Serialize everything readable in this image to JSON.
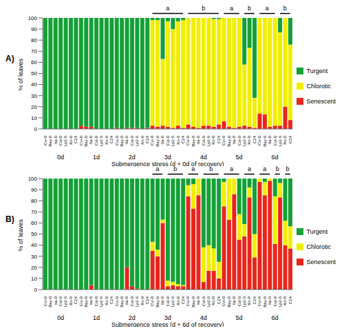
{
  "chart_data": [
    {
      "type": "bar",
      "stacked": true,
      "panel": "A)",
      "legend": "right",
      "categories": [
        "Cvi-0",
        "Bay-0",
        "Ita-0",
        "Col-0",
        "Lp2-6",
        "Kn-0",
        "C24",
        "Cvi-0",
        "Bay-0",
        "Ita-0",
        "Col-0",
        "Lp2-6",
        "Kn-0",
        "C24",
        "Cvi-0",
        "Bay-0",
        "Ita-0",
        "Col-0",
        "Lp2-6",
        "Kn-0",
        "C24",
        "Cvi-0",
        "Bay-0",
        "Ita-0",
        "Col-0",
        "Lp2-6",
        "Kn-0",
        "C24",
        "Cvi-0",
        "Bay-0",
        "Ita-0",
        "Col-0",
        "Lp2-6",
        "Kn-0",
        "C24",
        "Cvi-0",
        "Bay-0",
        "Ita-0",
        "Col-0",
        "Lp2-6",
        "Kn-0",
        "C24",
        "Cvi-0",
        "Bay-0",
        "Ita-0",
        "Col-0",
        "Lp2-6",
        "Kn-0",
        "C24"
      ],
      "groups": [
        "0d",
        "1d",
        "2d",
        "3d",
        "4d",
        "5d",
        "6d"
      ],
      "x_label": "Submergence stress (d + 0d of recovery)",
      "y_label": "% of leaves",
      "ylim": [
        0,
        100
      ],
      "yticks": [
        0,
        10,
        20,
        30,
        40,
        50,
        60,
        70,
        80,
        90,
        100
      ],
      "series": [
        {
          "name": "Turgent",
          "color": "#13a136",
          "values": [
            100,
            100,
            100,
            100,
            100,
            100,
            100,
            97,
            98,
            98,
            100,
            100,
            100,
            100,
            99,
            100,
            99,
            99,
            99,
            100,
            99,
            2,
            2,
            37,
            3,
            10,
            3,
            2,
            0,
            0,
            0,
            0,
            0,
            1,
            1,
            0,
            0,
            0,
            0,
            42,
            27,
            72,
            0,
            0,
            0,
            0,
            13,
            0,
            24
          ]
        },
        {
          "name": "Chlorotic",
          "color": "#f2ee00",
          "values": [
            0,
            0,
            0,
            0,
            0,
            0,
            0,
            0,
            0,
            0,
            0,
            0,
            0,
            0,
            0,
            0,
            0,
            0,
            0,
            0,
            0,
            95,
            96,
            60,
            95,
            89,
            94,
            97,
            96,
            98,
            99,
            97,
            97,
            97,
            95,
            93,
            98,
            99,
            98,
            55,
            71,
            27,
            86,
            87,
            98,
            97,
            84,
            80,
            68
          ]
        },
        {
          "name": "Senescent",
          "color": "#e8261c",
          "values": [
            0,
            0,
            0,
            0,
            0,
            0,
            0,
            3,
            2,
            2,
            0,
            0,
            0,
            0,
            1,
            0,
            1,
            1,
            1,
            0,
            1,
            3,
            2,
            3,
            2,
            1,
            3,
            1,
            4,
            2,
            1,
            3,
            3,
            2,
            4,
            7,
            2,
            1,
            2,
            3,
            2,
            1,
            14,
            13,
            2,
            3,
            3,
            20,
            8
          ]
        }
      ],
      "annotations": [
        {
          "label": "a",
          "from": 21,
          "to": 27
        },
        {
          "label": "b",
          "from": 28,
          "to": 34
        },
        {
          "label": "a",
          "from": 35,
          "to": 38
        },
        {
          "label": "b",
          "from": 39,
          "to": 41
        },
        {
          "label": "a",
          "from": 42,
          "to": 45
        },
        {
          "label": "b",
          "from": 46,
          "to": 48
        }
      ]
    },
    {
      "type": "bar",
      "stacked": true,
      "panel": "B)",
      "legend": "right",
      "categories": [
        "Cvi-0",
        "Bay-0",
        "Ita-0",
        "Col-0",
        "Lp2-6",
        "Kn-0",
        "C24",
        "Cvi-0",
        "Bay-0",
        "Ita-0",
        "Col-0",
        "Lp2-6",
        "Kn-0",
        "C24",
        "Cvi-0",
        "Bay-0",
        "Ita-0",
        "Col-0",
        "Lp2-6",
        "Kn-0",
        "C24",
        "Cvi-0",
        "Bay-0",
        "Ita-0",
        "Col-0",
        "Lp2-6",
        "Kn-0",
        "C24",
        "Cvi-0",
        "Bay-0",
        "Ita-0",
        "Col-0",
        "Lp2-6",
        "Kn-0",
        "C24",
        "Cvi-0",
        "Bay-0",
        "Ita-0",
        "Col-0",
        "Lp2-6",
        "Kn-0",
        "C24",
        "Cvi-0",
        "Bay-0",
        "Ita-0",
        "Col-0",
        "Lp2-6",
        "Kn-0",
        "C24"
      ],
      "groups": [
        "0d",
        "1d",
        "2d",
        "3d",
        "4d",
        "5d",
        "6d"
      ],
      "x_label": "Submergence stress (d + 6d of recovery)",
      "y_label": "% of leaves",
      "ylim": [
        0,
        100
      ],
      "yticks": [
        0,
        10,
        20,
        30,
        40,
        50,
        60,
        70,
        80,
        90,
        100
      ],
      "series": [
        {
          "name": "Turgent",
          "color": "#13a136",
          "values": [
            100,
            100,
            100,
            100,
            100,
            100,
            100,
            100,
            100,
            96,
            100,
            100,
            100,
            100,
            100,
            100,
            80,
            97,
            99,
            100,
            100,
            57,
            64,
            37,
            92,
            93,
            95,
            96,
            6,
            5,
            0,
            62,
            60,
            63,
            75,
            3,
            0,
            0,
            32,
            41,
            8,
            50,
            0,
            3,
            0,
            16,
            4,
            38,
            43
          ]
        },
        {
          "name": "Chlorotic",
          "color": "#f2ee00",
          "values": [
            0,
            0,
            0,
            0,
            0,
            0,
            0,
            0,
            0,
            0,
            0,
            0,
            0,
            0,
            0,
            0,
            0,
            0,
            0,
            0,
            0,
            8,
            6,
            3,
            5,
            3,
            2,
            1,
            10,
            22,
            15,
            31,
            23,
            20,
            15,
            22,
            37,
            14,
            23,
            11,
            9,
            21,
            3,
            12,
            2,
            43,
            13,
            22,
            20
          ]
        },
        {
          "name": "Senescent",
          "color": "#e8261c",
          "values": [
            0,
            0,
            0,
            0,
            0,
            0,
            0,
            0,
            0,
            4,
            0,
            0,
            0,
            0,
            0,
            0,
            20,
            3,
            1,
            0,
            0,
            35,
            30,
            60,
            3,
            4,
            3,
            3,
            84,
            73,
            85,
            7,
            17,
            17,
            10,
            75,
            63,
            86,
            45,
            48,
            83,
            29,
            97,
            85,
            98,
            41,
            83,
            40,
            37
          ]
        }
      ],
      "annotations": [
        {
          "label": "a",
          "from": 21,
          "to": 23
        },
        {
          "label": "b",
          "from": 24,
          "to": 27
        },
        {
          "label": "a",
          "from": 28,
          "to": 30
        },
        {
          "label": "b",
          "from": 31,
          "to": 34
        },
        {
          "label": "a",
          "from": 35,
          "to": 38
        },
        {
          "label": "a",
          "from": 39,
          "to": 41
        },
        {
          "label": "a",
          "from": 42,
          "to": 44
        },
        {
          "label": "b",
          "from": 45,
          "to": 46
        },
        {
          "label": "b",
          "from": 47,
          "to": 48
        }
      ]
    }
  ]
}
